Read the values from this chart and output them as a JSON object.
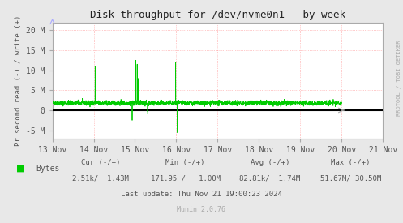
{
  "title": "Disk throughput for /dev/nvme0n1 - by week",
  "ylabel": "Pr second read (-) / write (+)",
  "bg_color": "#e8e8e8",
  "plot_bg_color": "#ffffff",
  "grid_color": "#ff9999",
  "line_color": "#00cc00",
  "zero_line_color": "#000000",
  "axis_color": "#aaaaaa",
  "text_color": "#555555",
  "ylim": [
    -7000000,
    22000000
  ],
  "yticks": [
    -5000000,
    0,
    5000000,
    10000000,
    15000000,
    20000000
  ],
  "ytick_labels": [
    "-5 M",
    "0",
    "5 M",
    "10 M",
    "15 M",
    "20 M"
  ],
  "x_start": 0,
  "x_end": 604800,
  "xtick_positions": [
    0,
    86400,
    172800,
    259200,
    345600,
    432000,
    518400,
    604800,
    691200
  ],
  "xtick_labels": [
    "13 Nov",
    "14 Nov",
    "15 Nov",
    "16 Nov",
    "17 Nov",
    "18 Nov",
    "19 Nov",
    "20 Nov",
    "21 Nov"
  ],
  "legend_label": "Bytes",
  "legend_color": "#00cc00",
  "cur_label": "Cur (-/+)",
  "cur_value": "2.51k/  1.43M",
  "min_label": "Min (-/+)",
  "min_value": "171.95 /   1.00M",
  "avg_label": "Avg (-/+)",
  "avg_value": "82.81k/  1.74M",
  "max_label": "Max (-/+)",
  "max_value": "51.67M/ 30.50M",
  "last_update": "Last update: Thu Nov 21 19:00:23 2024",
  "munin_version": "Munin 2.0.76",
  "watermark": "RRDTOOL / TOBI OETIKER"
}
